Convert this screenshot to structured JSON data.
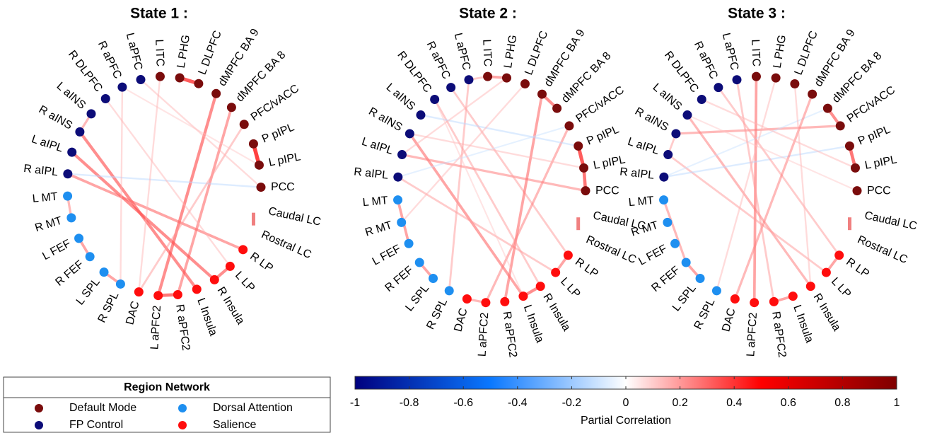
{
  "panels": [
    {
      "title": "State 1 :",
      "edges": [
        {
          "from": "L PHG",
          "to": "L DLPFC",
          "value": 0.45
        },
        {
          "from": "P pIPL",
          "to": "L pIPL",
          "value": 0.5
        },
        {
          "from": "dMPFC BA 9",
          "to": "L aPFC2",
          "value": 0.35
        },
        {
          "from": "dMPFC BA 8",
          "to": "R aPFC2",
          "value": 0.3
        },
        {
          "from": "R aINS",
          "to": "L Insula",
          "value": 0.35
        },
        {
          "from": "L aIPL",
          "to": "R Insula",
          "value": 0.35
        },
        {
          "from": "R aIPL",
          "to": "R LP",
          "value": 0.3
        },
        {
          "from": "R aIPL",
          "to": "PCC",
          "value": -0.15
        },
        {
          "from": "L MT",
          "to": "R MT",
          "value": 0.25
        },
        {
          "from": "L FEF",
          "to": "R FEF",
          "value": 0.3
        },
        {
          "from": "R Insula",
          "to": "L LP",
          "value": 0.35
        },
        {
          "from": "L aPFC2",
          "to": "R aPFC2",
          "value": 0.4
        },
        {
          "from": "PFC/vACC",
          "to": "DAC",
          "value": 0.2
        },
        {
          "from": "R DLPFC",
          "to": "L LP",
          "value": 0.15
        },
        {
          "from": "L aINS",
          "to": "R aINS",
          "value": 0.25
        },
        {
          "from": "L aPFC",
          "to": "PCC",
          "value": 0.15
        },
        {
          "from": "R aPFC",
          "to": "L pIPL",
          "value": 0.12
        },
        {
          "from": "L ITC",
          "to": "DAC",
          "value": 0.15
        },
        {
          "from": "R SPL",
          "to": "R aPFC",
          "value": 0.15
        },
        {
          "from": "L SPL",
          "to": "R SPL",
          "value": 0.3
        }
      ]
    },
    {
      "title": "State 2 :",
      "edges": [
        {
          "from": "L ITC",
          "to": "L PHG",
          "value": 0.3
        },
        {
          "from": "dMPFC BA 9",
          "to": "dMPFC BA 8",
          "value": 0.35
        },
        {
          "from": "P pIPL",
          "to": "L pIPL",
          "value": 0.45
        },
        {
          "from": "L pIPL",
          "to": "PCC",
          "value": 0.4
        },
        {
          "from": "R aINS",
          "to": "L Insula",
          "value": 0.3
        },
        {
          "from": "L aIPL",
          "to": "PCC",
          "value": 0.25
        },
        {
          "from": "R aIPL",
          "to": "L LP",
          "value": 0.2
        },
        {
          "from": "R aPFC",
          "to": "R LP",
          "value": 0.2
        },
        {
          "from": "dMPFC BA 9",
          "to": "R aPFC2",
          "value": 0.3
        },
        {
          "from": "PFC/vACC",
          "to": "L aPFC2",
          "value": 0.25
        },
        {
          "from": "L aPFC",
          "to": "R SPL",
          "value": 0.2
        },
        {
          "from": "R DLPFC",
          "to": "R Insula",
          "value": 0.2
        },
        {
          "from": "L aINS",
          "to": "P pIPL",
          "value": -0.15
        },
        {
          "from": "R aIPL",
          "to": "PFC/vACC",
          "value": -0.12
        },
        {
          "from": "L MT",
          "to": "L FEF",
          "value": 0.3
        },
        {
          "from": "R FEF",
          "to": "L SPL",
          "value": 0.3
        },
        {
          "from": "DAC",
          "to": "L aPFC2",
          "value": 0.25
        },
        {
          "from": "L Insula",
          "to": "R Insula",
          "value": 0.35
        },
        {
          "from": "L LP",
          "to": "R LP",
          "value": 0.3
        },
        {
          "from": "L DLPFC",
          "to": "R MT",
          "value": 0.15
        },
        {
          "from": "L PHG",
          "to": "L aIPL",
          "value": 0.15
        },
        {
          "from": "R aINS",
          "to": "L pIPL",
          "value": 0.15
        },
        {
          "from": "L aPFC",
          "to": "L ITC",
          "value": 0.2
        },
        {
          "from": "R DLPFC",
          "to": "L Insula",
          "value": 0.12
        }
      ]
    },
    {
      "title": "State 3 :",
      "edges": [
        {
          "from": "L ITC",
          "to": "L aPFC2",
          "value": 0.3
        },
        {
          "from": "dMPFC BA 8",
          "to": "PFC/vACC",
          "value": 0.35
        },
        {
          "from": "P pIPL",
          "to": "L pIPL",
          "value": 0.4
        },
        {
          "from": "L aINS",
          "to": "R Insula",
          "value": 0.25
        },
        {
          "from": "R aINS",
          "to": "PFC/vACC",
          "value": 0.25
        },
        {
          "from": "L aIPL",
          "to": "L LP",
          "value": 0.2
        },
        {
          "from": "R aIPL",
          "to": "P pIPL",
          "value": -0.15
        },
        {
          "from": "R aIPL",
          "to": "dMPFC BA 8",
          "value": -0.12
        },
        {
          "from": "R aPFC",
          "to": "R LP",
          "value": 0.2
        },
        {
          "from": "dMPFC BA 9",
          "to": "DAC",
          "value": 0.25
        },
        {
          "from": "L aPFC",
          "to": "R aPFC2",
          "value": 0.2
        },
        {
          "from": "L MT",
          "to": "R FEF",
          "value": 0.25
        },
        {
          "from": "R FEF",
          "to": "L SPL",
          "value": 0.3
        },
        {
          "from": "L Insula",
          "to": "R aPFC2",
          "value": 0.3
        },
        {
          "from": "L LP",
          "to": "R LP",
          "value": 0.3
        },
        {
          "from": "R DLPFC",
          "to": "L pIPL",
          "value": 0.15
        },
        {
          "from": "L PHG",
          "to": "R SPL",
          "value": 0.15
        },
        {
          "from": "R aINS",
          "to": "L aIPL",
          "value": 0.2
        },
        {
          "from": "L DLPFC",
          "to": "R Insula",
          "value": 0.15
        },
        {
          "from": "PCC",
          "to": "L aINS",
          "value": 0.12
        }
      ]
    }
  ],
  "networks": [
    {
      "name": "Default Mode",
      "color": "#7a0c0c",
      "nodes": [
        "L ITC",
        "L PHG",
        "L DLPFC",
        "dMPFC BA 9",
        "dMPFC BA 8",
        "PFC/vACC",
        "P pIPL",
        "L pIPL",
        "PCC"
      ]
    },
    {
      "name": "FP Control",
      "color": "#0c0c78",
      "nodes": [
        "R aIPL",
        "L aIPL",
        "R aINS",
        "L aINS",
        "R DLPFC",
        "R aPFC",
        "L aPFC"
      ]
    },
    {
      "name": "Dorsal Attention",
      "color": "#1e8ff0",
      "nodes": [
        "R SPL",
        "L SPL",
        "R FEF",
        "L FEF",
        "R MT",
        "L MT"
      ]
    },
    {
      "name": "Salience",
      "color": "#ff0d0d",
      "nodes": [
        "R LP",
        "L LP",
        "R Insula",
        "L Insula",
        "R aPFC2",
        "L aPFC2",
        "DAC"
      ]
    }
  ],
  "lc": {
    "color": "#f08080",
    "nodes": [
      "Caudal LC",
      "Rostral LC"
    ]
  },
  "legend": {
    "title": "Region Network"
  },
  "colorbar": {
    "label": "Partial Correlation",
    "lim": [
      -1,
      1
    ],
    "ticks": [
      -1,
      -0.8,
      -0.6,
      -0.4,
      -0.2,
      0,
      0.2,
      0.4,
      0.6,
      0.8,
      1
    ],
    "colors": [
      "#00007f",
      "#0a78ff",
      "#ffffff",
      "#ff0000",
      "#7f0000"
    ]
  }
}
